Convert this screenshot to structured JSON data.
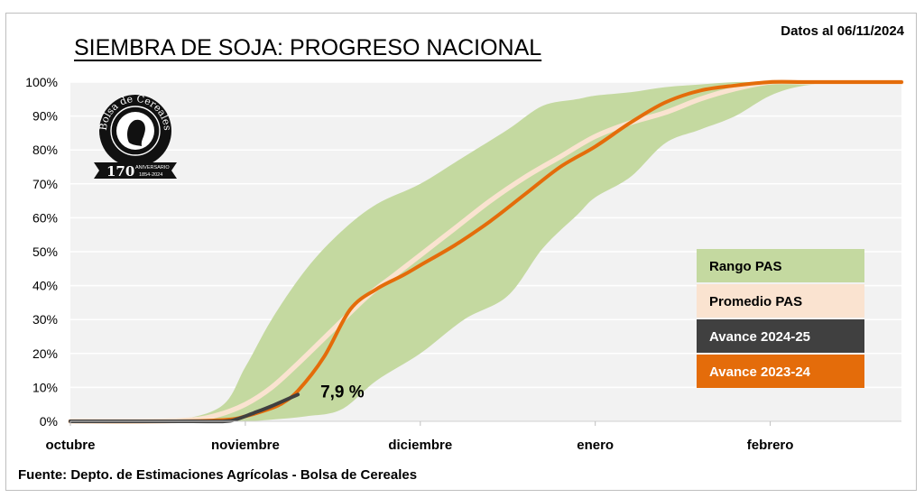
{
  "header": {
    "title": "SIEMBRA DE SOJA: PROGRESO NACIONAL",
    "date_note": "Datos al 06/11/2024"
  },
  "footer": {
    "source": "Fuente: Depto. de Estimaciones Agrícolas - Bolsa de Cereales"
  },
  "logo": {
    "name": "Bolsa de Cereales",
    "anniversary": "170",
    "anniversary_word": "ANIVERSARIO",
    "years": "1854-2024"
  },
  "colors": {
    "range": "#c4d9a0",
    "average": "#fae3d0",
    "current": "#404040",
    "previous": "#e46c0a",
    "plot_bg": "#f2f2f2",
    "grid": "#ffffff"
  },
  "chart_data": {
    "type": "area",
    "title": "SIEMBRA DE SOJA: PROGRESO NACIONAL",
    "x_unit": "months since October 1 (0 = octubre, 1 = noviembre, 2 = diciembre, 3 = enero, 4 = febrero)",
    "x_ticks": [
      0,
      1,
      2,
      3,
      4
    ],
    "x_tick_labels": [
      "octubre",
      "noviembre",
      "diciembre",
      "enero",
      "febrero"
    ],
    "xlim": [
      0,
      4.75
    ],
    "ylim": [
      0,
      100
    ],
    "y_ticks": [
      0,
      10,
      20,
      30,
      40,
      50,
      60,
      70,
      80,
      90,
      100
    ],
    "y_tick_labels": [
      "0%",
      "10%",
      "20%",
      "30%",
      "40%",
      "50%",
      "60%",
      "70%",
      "80%",
      "90%",
      "100%"
    ],
    "grid": true,
    "legend_position": "right",
    "series": [
      {
        "name": "Rango PAS",
        "kind": "band",
        "color": "#c4d9a0",
        "x": [
          0,
          0.5,
          0.85,
          1.0,
          1.15,
          1.35,
          1.55,
          1.75,
          2.0,
          2.25,
          2.5,
          2.7,
          2.9,
          3.0,
          3.2,
          3.4,
          3.6,
          3.8,
          4.0,
          4.2,
          4.5,
          4.75
        ],
        "upper": [
          0,
          0,
          4,
          16,
          30,
          45,
          56,
          64,
          70,
          78,
          86,
          93,
          95,
          96,
          97,
          98.5,
          99.3,
          100,
          100,
          100,
          100,
          100
        ],
        "lower": [
          0,
          0,
          0,
          0,
          0.5,
          1.5,
          3.5,
          12,
          20,
          30,
          37,
          51,
          61,
          66,
          72,
          82,
          86,
          90,
          96,
          99,
          100,
          100
        ]
      },
      {
        "name": "Promedio PAS",
        "kind": "line",
        "color": "#fae3d0",
        "x": [
          0,
          0.45,
          0.7,
          0.85,
          1.0,
          1.15,
          1.3,
          1.5,
          1.7,
          1.85,
          2.0,
          2.2,
          2.4,
          2.6,
          2.8,
          3.0,
          3.2,
          3.4,
          3.6,
          3.8,
          4.0,
          4.2,
          4.5,
          4.75
        ],
        "values": [
          0,
          0,
          0.5,
          2,
          5,
          10,
          17,
          27,
          37,
          43,
          49,
          57,
          65,
          72,
          78,
          84,
          88,
          91,
          95,
          98,
          100,
          100,
          100,
          100
        ]
      },
      {
        "name": "Avance 2024-25",
        "kind": "line",
        "color": "#404040",
        "x": [
          0,
          0.4,
          0.7,
          0.88,
          0.95,
          1.05,
          1.15,
          1.3
        ],
        "values": [
          0,
          0,
          0,
          0,
          0.6,
          2.5,
          4.5,
          7.9
        ]
      },
      {
        "name": "Avance 2023-24",
        "kind": "line",
        "color": "#e46c0a",
        "x": [
          0,
          0.6,
          0.9,
          1.0,
          1.1,
          1.2,
          1.3,
          1.45,
          1.6,
          1.75,
          1.9,
          2.0,
          2.2,
          2.4,
          2.6,
          2.8,
          3.0,
          3.2,
          3.4,
          3.6,
          3.8,
          4.0,
          4.2,
          4.5,
          4.75
        ],
        "values": [
          0,
          0,
          0.5,
          1.5,
          3,
          5,
          9,
          19,
          33,
          39,
          43,
          46,
          52,
          59,
          67,
          75,
          81,
          88,
          94,
          97.5,
          99,
          100,
          100,
          100,
          100
        ]
      }
    ],
    "annotations": [
      {
        "text": "7,9 %",
        "x": 1.3,
        "y": 7.9
      }
    ]
  }
}
